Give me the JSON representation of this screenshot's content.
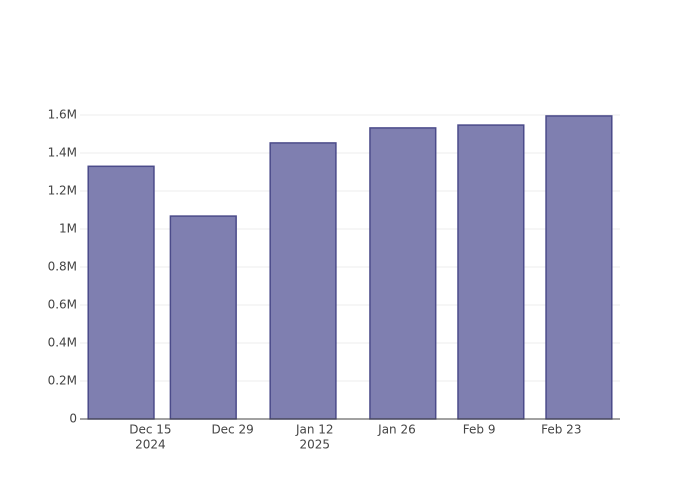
{
  "chart_data": {
    "type": "bar",
    "x": [
      "2024-12-10",
      "2024-12-24",
      "2025-01-10",
      "2025-01-27",
      "2025-02-11",
      "2025-02-26"
    ],
    "values": [
      1330000,
      1068000,
      1453000,
      1532000,
      1547000,
      1595000
    ],
    "color": "#7f7fb0",
    "edge_color": "#4b4b8a",
    "xlim": [
      "2024-12-03",
      "2025-03-05"
    ],
    "xticks": [
      {
        "value": "2024-12-15",
        "label": [
          "Dec 15",
          "2024"
        ]
      },
      {
        "value": "2024-12-29",
        "label": [
          "Dec 29"
        ]
      },
      {
        "value": "2025-01-12",
        "label": [
          "Jan 12",
          "2025"
        ]
      },
      {
        "value": "2025-01-26",
        "label": [
          "Jan 26"
        ]
      },
      {
        "value": "2025-02-09",
        "label": [
          "Feb 9"
        ]
      },
      {
        "value": "2025-02-23",
        "label": [
          "Feb 23"
        ]
      }
    ],
    "ylim": [
      0,
      1600000
    ],
    "yticks": [
      0,
      {
        "value": 200000,
        "label": "0.2M"
      },
      {
        "value": 400000,
        "label": "0.4M"
      },
      {
        "value": 600000,
        "label": "0.6M"
      },
      {
        "value": 800000,
        "label": "0.8M"
      },
      {
        "value": 1000000,
        "label": "1M"
      },
      {
        "value": 1200000,
        "label": "1.2M"
      },
      {
        "value": 1400000,
        "label": "1.4M"
      },
      {
        "value": 1600000,
        "label": "1.6M"
      }
    ],
    "grid": true
  }
}
